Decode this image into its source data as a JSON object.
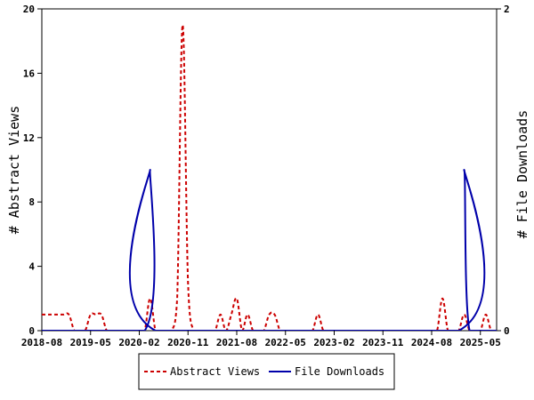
{
  "chart_data": {
    "type": "line",
    "ylabel_left": "# Abstract Views",
    "ylabel_right": "# File Downloads",
    "x_tick_labels": [
      "2018-08",
      "2019-05",
      "2020-02",
      "2020-11",
      "2021-08",
      "2022-05",
      "2023-02",
      "2023-11",
      "2024-08",
      "2025-05"
    ],
    "x_range": [
      "2018-08",
      "2025-08"
    ],
    "ylim_left": [
      0,
      20
    ],
    "ylim_right": [
      0,
      2
    ],
    "y_ticks_left": [
      "0",
      "4",
      "8",
      "12",
      "16",
      "20"
    ],
    "y_ticks_right": [
      "0",
      "2"
    ],
    "legend_position": "bottom",
    "series": [
      {
        "name": "Abstract Views",
        "axis": "left",
        "color": "#cc0000",
        "style": "dashed",
        "points": [
          [
            "2018-08",
            1
          ],
          [
            "2018-09",
            1
          ],
          [
            "2018-10",
            1
          ],
          [
            "2018-11",
            1
          ],
          [
            "2018-12",
            1
          ],
          [
            "2019-01",
            1
          ],
          [
            "2019-02",
            0
          ],
          [
            "2019-03",
            0
          ],
          [
            "2019-04",
            0
          ],
          [
            "2019-05",
            1
          ],
          [
            "2019-06",
            1
          ],
          [
            "2019-07",
            1
          ],
          [
            "2019-08",
            0
          ],
          [
            "2019-09",
            0
          ],
          [
            "2019-10",
            0
          ],
          [
            "2019-11",
            0
          ],
          [
            "2019-12",
            0
          ],
          [
            "2020-01",
            0
          ],
          [
            "2020-02",
            0
          ],
          [
            "2020-03",
            0
          ],
          [
            "2020-04",
            2
          ],
          [
            "2020-05",
            0
          ],
          [
            "2020-06",
            0
          ],
          [
            "2020-07",
            0
          ],
          [
            "2020-08",
            0
          ],
          [
            "2020-09",
            2
          ],
          [
            "2020-10",
            19
          ],
          [
            "2020-11",
            3
          ],
          [
            "2020-12",
            0
          ],
          [
            "2021-01",
            0
          ],
          [
            "2021-02",
            0
          ],
          [
            "2021-03",
            0
          ],
          [
            "2021-04",
            0
          ],
          [
            "2021-05",
            1
          ],
          [
            "2021-06",
            0
          ],
          [
            "2021-07",
            1
          ],
          [
            "2021-08",
            2
          ],
          [
            "2021-09",
            0
          ],
          [
            "2021-10",
            1
          ],
          [
            "2021-11",
            0
          ],
          [
            "2021-12",
            0
          ],
          [
            "2022-01",
            0
          ],
          [
            "2022-02",
            1
          ],
          [
            "2022-03",
            1
          ],
          [
            "2022-04",
            0
          ],
          [
            "2022-05",
            0
          ],
          [
            "2022-06",
            0
          ],
          [
            "2022-07",
            0
          ],
          [
            "2022-08",
            0
          ],
          [
            "2022-09",
            0
          ],
          [
            "2022-10",
            0
          ],
          [
            "2022-11",
            1
          ],
          [
            "2022-12",
            0
          ],
          [
            "2023-01",
            0
          ],
          [
            "2023-02",
            0
          ],
          [
            "2023-03",
            0
          ],
          [
            "2023-04",
            0
          ],
          [
            "2023-05",
            0
          ],
          [
            "2023-06",
            0
          ],
          [
            "2023-07",
            0
          ],
          [
            "2023-08",
            0
          ],
          [
            "2023-09",
            0
          ],
          [
            "2023-10",
            0
          ],
          [
            "2023-11",
            0
          ],
          [
            "2023-12",
            0
          ],
          [
            "2024-01",
            0
          ],
          [
            "2024-02",
            0
          ],
          [
            "2024-03",
            0
          ],
          [
            "2024-04",
            0
          ],
          [
            "2024-05",
            0
          ],
          [
            "2024-06",
            0
          ],
          [
            "2024-07",
            0
          ],
          [
            "2024-08",
            0
          ],
          [
            "2024-09",
            0
          ],
          [
            "2024-10",
            2
          ],
          [
            "2024-11",
            0
          ],
          [
            "2024-12",
            0
          ],
          [
            "2025-01",
            0
          ],
          [
            "2025-02",
            1
          ],
          [
            "2025-03",
            0
          ],
          [
            "2025-04",
            0
          ],
          [
            "2025-05",
            0
          ],
          [
            "2025-06",
            1
          ],
          [
            "2025-07",
            0
          ],
          [
            "2025-08",
            0
          ]
        ]
      },
      {
        "name": "File Downloads",
        "axis": "right",
        "color": "#0000aa",
        "style": "solid",
        "points": [
          [
            "2018-08",
            0
          ],
          [
            "2020-03",
            0
          ],
          [
            "2020-04",
            1
          ],
          [
            "2020-05",
            0
          ],
          [
            "2025-01",
            0
          ],
          [
            "2025-02",
            1
          ],
          [
            "2025-03",
            0
          ],
          [
            "2025-08",
            0
          ]
        ]
      }
    ]
  }
}
